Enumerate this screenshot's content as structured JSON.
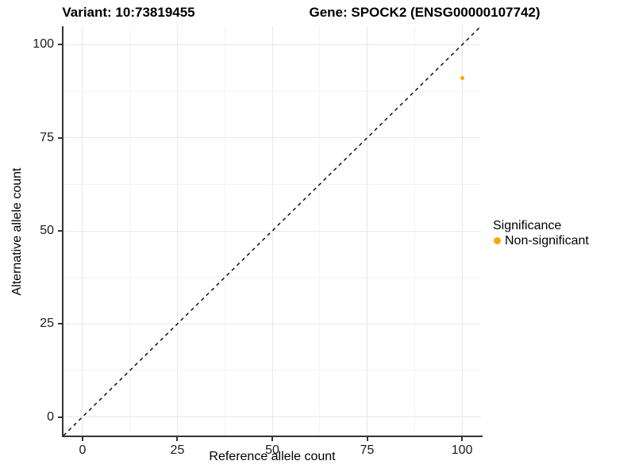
{
  "titles": {
    "variant": "Variant: 10:73819455",
    "gene": "Gene: SPOCK2 (ENSG00000107742)"
  },
  "chart_data": {
    "type": "scatter",
    "title": "Variant: 10:73819455 | Gene: SPOCK2 (ENSG00000107742)",
    "xlabel": "Reference allele count",
    "ylabel": "Alternative allele count",
    "xlim": [
      -5,
      105
    ],
    "ylim": [
      -5,
      105
    ],
    "xticks": [
      0,
      25,
      50,
      75,
      100
    ],
    "yticks": [
      0,
      25,
      50,
      75,
      100
    ],
    "xticks_minor": [
      12.5,
      37.5,
      62.5,
      87.5
    ],
    "yticks_minor": [
      12.5,
      37.5,
      62.5,
      87.5
    ],
    "grid": "major+minor",
    "identity_line": {
      "style": "dashed",
      "color": "#000000",
      "from": -5,
      "to": 105
    },
    "series": [
      {
        "name": "Non-significant",
        "color": "#FFA500",
        "points": [
          {
            "x": 100,
            "y": 91
          }
        ]
      }
    ],
    "legend": {
      "title": "Significance",
      "position": "right",
      "items": [
        {
          "label": "Non-significant",
          "color": "#FFA500"
        }
      ]
    }
  },
  "colors": {
    "point_orange": "#FFA500",
    "grid_major": "#e8e8e8",
    "grid_minor": "#f4f4f4",
    "axis": "#333333"
  }
}
